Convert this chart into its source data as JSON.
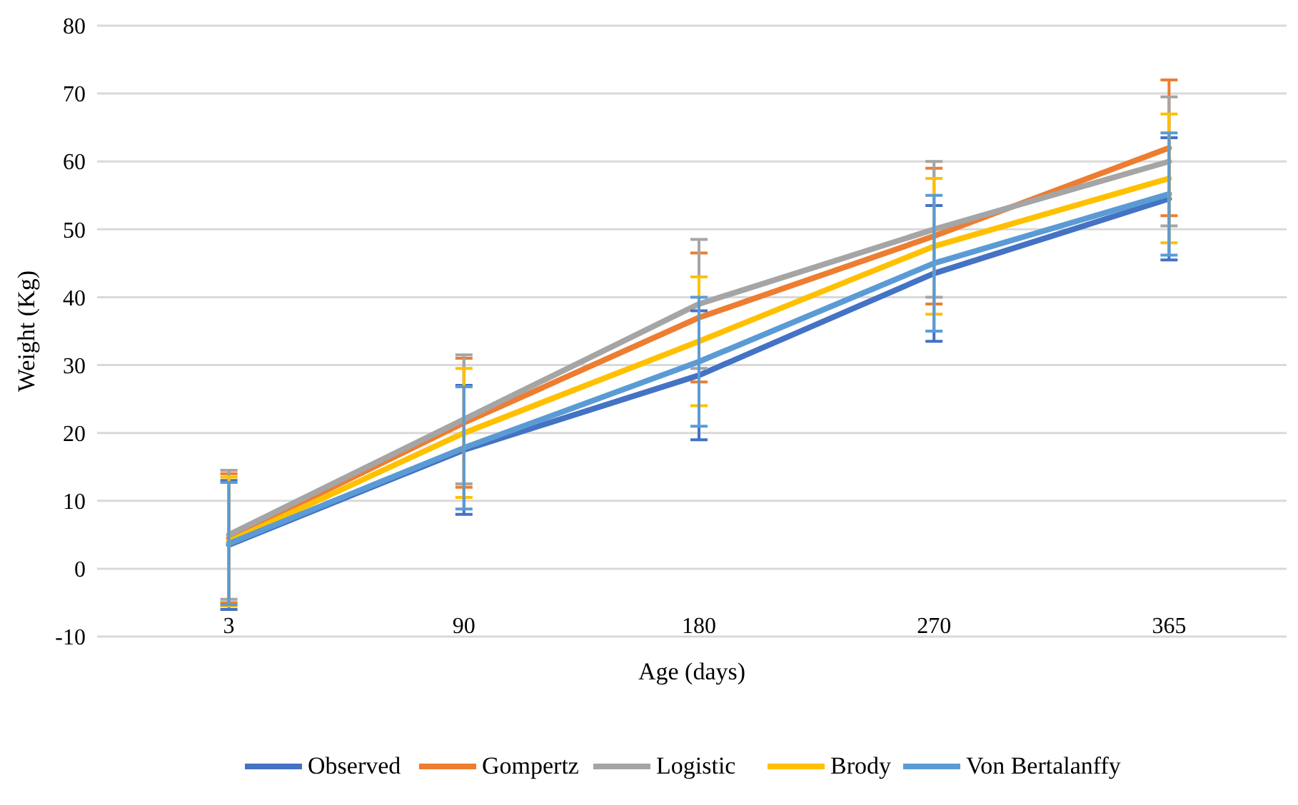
{
  "chart_data": {
    "type": "line",
    "xlabel": "Age (days)",
    "ylabel": "Weight (Kg)",
    "categories": [
      "3",
      "90",
      "180",
      "270",
      "365"
    ],
    "series": [
      {
        "name": "Observed",
        "color": "#4472c4",
        "values": [
          3.5,
          17.5,
          28.5,
          43.5,
          54.5
        ],
        "errors": [
          9.5,
          9.5,
          9.5,
          10,
          9
        ]
      },
      {
        "name": "Gompertz",
        "color": "#ed7d31",
        "values": [
          4.5,
          21.5,
          37,
          49,
          62
        ],
        "errors": [
          9.5,
          9.5,
          9.5,
          10,
          10
        ]
      },
      {
        "name": "Logistic",
        "color": "#a5a5a5",
        "values": [
          5,
          22,
          39,
          50,
          60
        ],
        "errors": [
          9.5,
          9.5,
          9.5,
          10,
          9.5
        ]
      },
      {
        "name": "Brody",
        "color": "#ffc000",
        "values": [
          4,
          20,
          33.5,
          47.5,
          57.5
        ],
        "errors": [
          9.5,
          9.5,
          9.5,
          10,
          9.5
        ]
      },
      {
        "name": "Von Bertalanffy",
        "color": "#5b9bd5",
        "values": [
          3.7,
          17.8,
          30.5,
          45,
          55.2
        ],
        "errors": [
          9,
          9,
          9.5,
          10,
          9
        ]
      }
    ],
    "ylim": [
      -10,
      80
    ],
    "yticks": [
      -10,
      0,
      10,
      20,
      30,
      40,
      50,
      60,
      70,
      80
    ],
    "grid": "y",
    "legend": "bottom",
    "marker": "none",
    "line_style": "solid"
  }
}
